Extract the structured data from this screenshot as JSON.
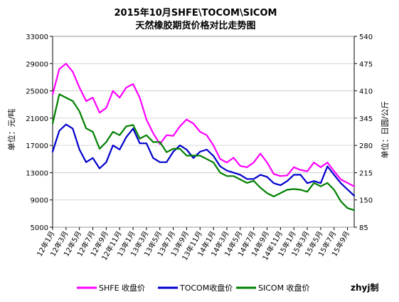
{
  "chart_data": {
    "type": "line",
    "title": "2015年10月SHFE\\TOCOM\\SICOM",
    "subtitle": "天然橡胶期货价格对比走势图",
    "ylabel_left": "单位：元/吨",
    "ylabel_right": "单位：日圆/公斤",
    "watermark": "zhyj制",
    "ylim_left": [
      5000,
      33000
    ],
    "yticks_left": [
      "33000",
      "29000",
      "25000",
      "21000",
      "17000",
      "13000",
      "9000",
      "5000"
    ],
    "ylim_right": [
      85,
      540
    ],
    "yticks_right": [
      "540",
      "475",
      "410",
      "345",
      "280",
      "215",
      "150",
      "85"
    ],
    "x_range": [
      "2012-01",
      "2015-10"
    ],
    "x_tick_labels": [
      "12年1月",
      "12年3月",
      "12年5月",
      "12年7月",
      "12年9月",
      "12年11月",
      "13年1月",
      "13年3月",
      "13年5月",
      "13年7月",
      "13年9月",
      "13年11月",
      "14年1月",
      "14年3月",
      "14年5月",
      "14年7月",
      "14年9月",
      "14年11月",
      "15年1月",
      "15年3月",
      "15年5月",
      "15年7月",
      "15年9月"
    ],
    "legend_position": "bottom",
    "colors": {
      "SHFE": "#ff00ff",
      "TOCOM": "#0000cc",
      "SICOM": "#008000"
    },
    "series": [
      {
        "name": "SHFE 收盘价",
        "axis": "left",
        "x": [
          "2012-01",
          "2012-02",
          "2012-03",
          "2012-04",
          "2012-05",
          "2012-06",
          "2012-07",
          "2012-08",
          "2012-09",
          "2012-10",
          "2012-11",
          "2012-12",
          "2013-01",
          "2013-02",
          "2013-03",
          "2013-04",
          "2013-05",
          "2013-06",
          "2013-07",
          "2013-08",
          "2013-09",
          "2013-10",
          "2013-11",
          "2013-12",
          "2014-01",
          "2014-02",
          "2014-03",
          "2014-04",
          "2014-05",
          "2014-06",
          "2014-07",
          "2014-08",
          "2014-09",
          "2014-10",
          "2014-11",
          "2014-12",
          "2015-01",
          "2015-02",
          "2015-03",
          "2015-04",
          "2015-05",
          "2015-06",
          "2015-07",
          "2015-08",
          "2015-09",
          "2015-10"
        ],
        "values": [
          24500,
          28200,
          29000,
          27800,
          25500,
          23500,
          24000,
          21800,
          22500,
          25000,
          24000,
          25500,
          26000,
          24000,
          20800,
          18800,
          17200,
          18500,
          18400,
          19800,
          20800,
          20200,
          19000,
          18500,
          17000,
          15000,
          14500,
          15200,
          14000,
          13800,
          14500,
          15800,
          14500,
          12800,
          12500,
          12600,
          13800,
          13400,
          13200,
          14500,
          13800,
          14500,
          13200,
          12000,
          11500,
          11000
        ]
      },
      {
        "name": "TOCOM收盘价",
        "axis": "right",
        "x": [
          "2012-01",
          "2012-02",
          "2012-03",
          "2012-04",
          "2012-05",
          "2012-06",
          "2012-07",
          "2012-08",
          "2012-09",
          "2012-10",
          "2012-11",
          "2012-12",
          "2013-01",
          "2013-02",
          "2013-03",
          "2013-04",
          "2013-05",
          "2013-06",
          "2013-07",
          "2013-08",
          "2013-09",
          "2013-10",
          "2013-11",
          "2013-12",
          "2014-01",
          "2014-02",
          "2014-03",
          "2014-04",
          "2014-05",
          "2014-06",
          "2014-07",
          "2014-08",
          "2014-09",
          "2014-10",
          "2014-11",
          "2014-12",
          "2015-01",
          "2015-02",
          "2015-03",
          "2015-04",
          "2015-05",
          "2015-06",
          "2015-07",
          "2015-08",
          "2015-09",
          "2015-10"
        ],
        "values": [
          265,
          315,
          330,
          320,
          270,
          240,
          250,
          225,
          240,
          280,
          270,
          300,
          320,
          285,
          285,
          250,
          240,
          240,
          265,
          280,
          270,
          250,
          265,
          270,
          255,
          230,
          220,
          215,
          210,
          200,
          200,
          210,
          205,
          190,
          185,
          195,
          210,
          210,
          190,
          195,
          190,
          230,
          210,
          190,
          175,
          160
        ]
      },
      {
        "name": "SICOM 收盘价",
        "axis": "left",
        "x": [
          "2012-01",
          "2012-02",
          "2012-03",
          "2012-04",
          "2012-05",
          "2012-06",
          "2012-07",
          "2012-08",
          "2012-09",
          "2012-10",
          "2012-11",
          "2012-12",
          "2013-01",
          "2013-02",
          "2013-03",
          "2013-04",
          "2013-05",
          "2013-06",
          "2013-07",
          "2013-08",
          "2013-09",
          "2013-10",
          "2013-11",
          "2013-12",
          "2014-01",
          "2014-02",
          "2014-03",
          "2014-04",
          "2014-05",
          "2014-06",
          "2014-07",
          "2014-08",
          "2014-09",
          "2014-10",
          "2014-11",
          "2014-12",
          "2015-01",
          "2015-02",
          "2015-03",
          "2015-04",
          "2015-05",
          "2015-06",
          "2015-07",
          "2015-08",
          "2015-09",
          "2015-10"
        ],
        "values": [
          20200,
          24500,
          24000,
          23500,
          22000,
          19500,
          19000,
          16500,
          17500,
          19000,
          18500,
          19800,
          20000,
          18000,
          18500,
          17500,
          17500,
          16000,
          16500,
          16500,
          15500,
          15500,
          15500,
          15000,
          14500,
          13000,
          12500,
          12500,
          12000,
          11500,
          11800,
          10800,
          10000,
          9500,
          10000,
          10500,
          10600,
          10500,
          10200,
          11500,
          11000,
          11500,
          10500,
          8800,
          7800,
          7500
        ]
      }
    ]
  }
}
